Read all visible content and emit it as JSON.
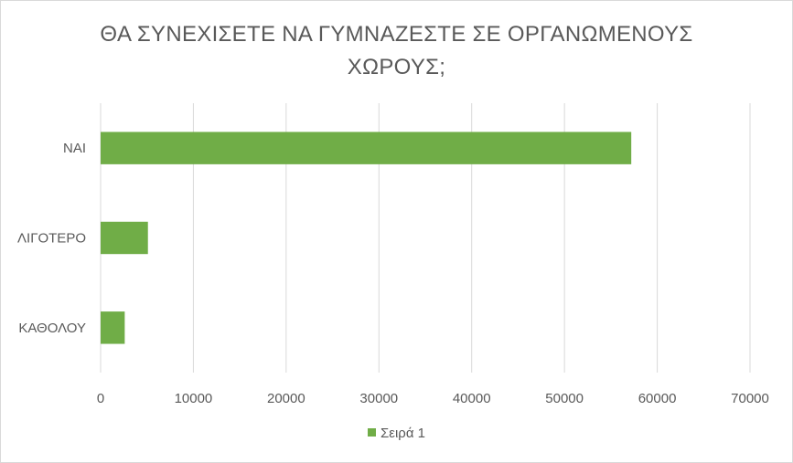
{
  "chart_data": {
    "type": "bar",
    "orientation": "horizontal",
    "title_lines": [
      "ΘΑ ΣΥΝΕΧΙΣΕΤΕ ΝΑ ΓΥΜΝΑΖΕΣΤΕ ΣΕ ΟΡΓΑΝΩΜΕΝΟΥΣ",
      "ΧΩΡΟΥΣ;"
    ],
    "categories": [
      "ΝΑΙ",
      "ΛΙΓΟΤΕΡΟ",
      "ΚΑΘΟΛΟΥ"
    ],
    "series": [
      {
        "name": "Σειρά 1",
        "values": [
          57200,
          5100,
          2600
        ],
        "color": "#70ad47"
      }
    ],
    "xlim": [
      0,
      70000
    ],
    "xticks": [
      0,
      10000,
      20000,
      30000,
      40000,
      50000,
      60000,
      70000
    ],
    "xtick_labels": [
      "0",
      "10000",
      "20000",
      "30000",
      "40000",
      "50000",
      "60000",
      "70000"
    ],
    "grid": true,
    "grid_color": "#d9d9d9",
    "legend_position": "bottom"
  }
}
